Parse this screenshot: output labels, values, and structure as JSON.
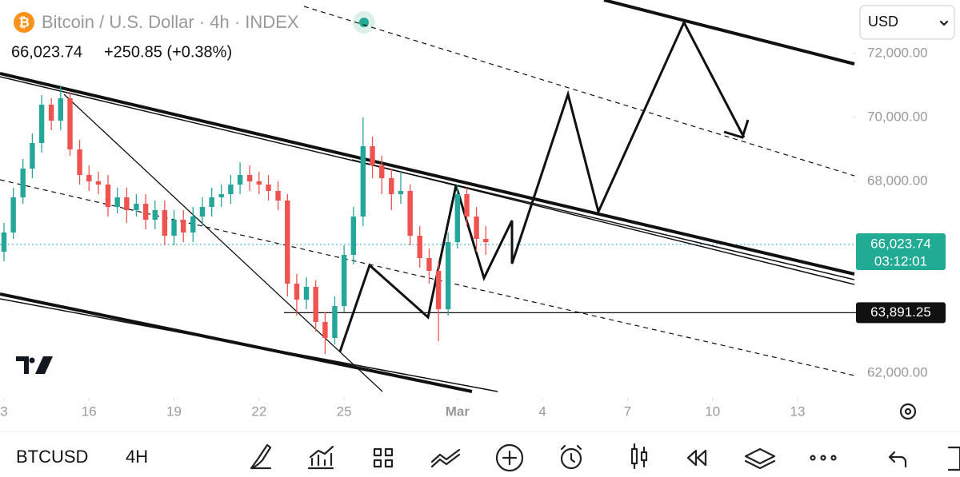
{
  "header": {
    "title": "Bitcoin / U.S. Dollar · 4h · INDEX",
    "price": "66,023.74",
    "change": "+250.85 (+0.38%)",
    "currency": "USD"
  },
  "toolbar": {
    "symbol": "BTCUSD",
    "interval": "4H"
  },
  "chart_data": {
    "type": "candlestick",
    "x": [
      13,
      13.33,
      13.67,
      14,
      14.33,
      14.67,
      15,
      15.33,
      15.67,
      16,
      16.33,
      16.67,
      17,
      17.33,
      17.67,
      18,
      18.33,
      18.67,
      19,
      19.33,
      19.67,
      20,
      20.33,
      20.67,
      21,
      21.33,
      21.67,
      22,
      22.33,
      22.67,
      23,
      23.33,
      23.67,
      24,
      24.33,
      24.67,
      25,
      25.33,
      25.67,
      26,
      26.33,
      26.67,
      27,
      27.33,
      27.67,
      28,
      28.33,
      28.67,
      29,
      29.33,
      29.67,
      30
    ],
    "open": [
      65800,
      66400,
      67500,
      68400,
      69200,
      70400,
      69900,
      70600,
      69000,
      68200,
      68000,
      67900,
      67200,
      67500,
      67100,
      67300,
      66800,
      67100,
      66300,
      66800,
      66400,
      66900,
      67200,
      67500,
      67600,
      67900,
      68200,
      68000,
      67900,
      67700,
      67400,
      64800,
      64300,
      64700,
      63600,
      63100,
      64100,
      65700,
      66900,
      69100,
      68500,
      68100,
      67600,
      67700,
      66300,
      65600,
      65200,
      64000,
      66100,
      67600,
      66900,
      66200
    ],
    "high": [
      66700,
      67800,
      68700,
      69500,
      70700,
      70600,
      71000,
      70800,
      69300,
      68500,
      68300,
      68200,
      67800,
      67800,
      67600,
      67600,
      67400,
      67400,
      67100,
      67100,
      67200,
      67500,
      67800,
      67900,
      68200,
      68600,
      68500,
      68300,
      68200,
      68000,
      67600,
      65100,
      65000,
      64900,
      63900,
      64400,
      66000,
      67200,
      70000,
      69400,
      68800,
      68400,
      68300,
      67900,
      66600,
      65900,
      65500,
      66400,
      67900,
      67800,
      67200,
      66600
    ],
    "low": [
      65500,
      66200,
      67300,
      68100,
      68900,
      69600,
      69600,
      68800,
      67900,
      67700,
      67600,
      66900,
      67000,
      66700,
      66900,
      66500,
      66500,
      66000,
      66000,
      66100,
      66100,
      66600,
      66900,
      67200,
      67300,
      67600,
      67700,
      67600,
      67400,
      67100,
      64400,
      63800,
      64000,
      63300,
      62600,
      62900,
      63900,
      65400,
      66600,
      68100,
      67600,
      67100,
      67300,
      66000,
      65300,
      64800,
      63000,
      63800,
      65900,
      66600,
      65800,
      65700
    ],
    "close": [
      66400,
      67500,
      68400,
      69200,
      70400,
      69900,
      70600,
      69000,
      68200,
      68000,
      67900,
      67200,
      67500,
      67100,
      67300,
      66800,
      67100,
      66300,
      66800,
      66400,
      66900,
      67200,
      67500,
      67600,
      67900,
      68200,
      68000,
      67900,
      67700,
      67400,
      64800,
      64300,
      64700,
      63600,
      63100,
      64100,
      65700,
      66900,
      69100,
      68500,
      68100,
      67600,
      67700,
      66300,
      65600,
      65200,
      64000,
      66100,
      67600,
      66900,
      66200,
      66100
    ],
    "up_color": "#26a69a",
    "down_color": "#ef5350",
    "xlim": [
      12.86,
      43.06
    ],
    "xticks": [
      {
        "value": 13,
        "label": "3"
      },
      16,
      19,
      22,
      25,
      {
        "value": 29,
        "label": "Mar"
      },
      {
        "value": 32,
        "label": "4"
      },
      {
        "value": 35,
        "label": "7"
      },
      {
        "value": 38,
        "label": "10"
      },
      {
        "value": 41,
        "label": "13"
      }
    ],
    "ylim": [
      61225,
      73675
    ],
    "yticks": [
      {
        "value": 72000,
        "label": "72,000.00"
      },
      {
        "value": 70000,
        "label": "70,000.00"
      },
      {
        "value": 68000,
        "label": "68,000.00"
      },
      {
        "value": 62000,
        "label": "62,000.00"
      }
    ],
    "last_price": {
      "value": 66023.74,
      "label": "66,023.74"
    },
    "countdown": "03:12:01",
    "level": {
      "value": 63891.25,
      "label": "63,891.25"
    }
  }
}
